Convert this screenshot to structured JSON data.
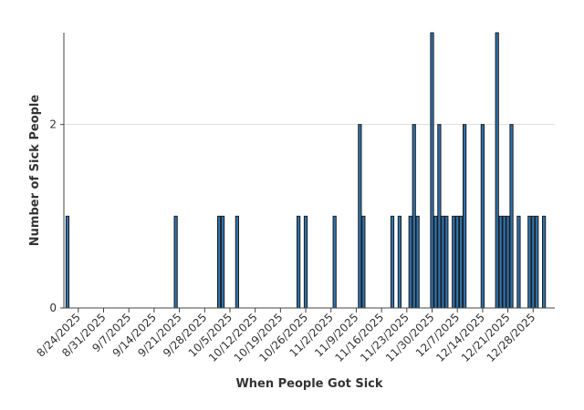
{
  "chart_data": {
    "type": "bar",
    "title": "",
    "xlabel": "When People Got Sick",
    "ylabel": "Number of Sick People",
    "x_range": [
      "2025-08-20",
      "2026-01-03"
    ],
    "ylim": [
      0,
      3
    ],
    "y_ticks": [
      0,
      2
    ],
    "grid": "horizontal",
    "bar_color": "#2f72ad",
    "x_ticks": [
      {
        "date": "2025-08-24",
        "label": "8/24/2025"
      },
      {
        "date": "2025-08-31",
        "label": "8/31/2025"
      },
      {
        "date": "2025-09-07",
        "label": "9/7/2025"
      },
      {
        "date": "2025-09-14",
        "label": "9/14/2025"
      },
      {
        "date": "2025-09-21",
        "label": "9/21/2025"
      },
      {
        "date": "2025-09-28",
        "label": "9/28/2025"
      },
      {
        "date": "2025-10-05",
        "label": "10/5/2025"
      },
      {
        "date": "2025-10-12",
        "label": "10/12/2025"
      },
      {
        "date": "2025-10-19",
        "label": "10/19/2025"
      },
      {
        "date": "2025-10-26",
        "label": "10/26/2025"
      },
      {
        "date": "2025-11-02",
        "label": "11/2/2025"
      },
      {
        "date": "2025-11-09",
        "label": "11/9/2025"
      },
      {
        "date": "2025-11-16",
        "label": "11/16/2025"
      },
      {
        "date": "2025-11-23",
        "label": "11/23/2025"
      },
      {
        "date": "2025-11-30",
        "label": "11/30/2025"
      },
      {
        "date": "2025-12-07",
        "label": "12/7/2025"
      },
      {
        "date": "2025-12-14",
        "label": "12/14/2025"
      },
      {
        "date": "2025-12-21",
        "label": "12/21/2025"
      },
      {
        "date": "2025-12-28",
        "label": "12/28/2025"
      }
    ],
    "x": [
      "2025-08-21",
      "2025-09-20",
      "2025-10-02",
      "2025-10-03",
      "2025-10-07",
      "2025-10-24",
      "2025-10-26",
      "2025-11-03",
      "2025-11-10",
      "2025-11-11",
      "2025-11-19",
      "2025-11-21",
      "2025-11-24",
      "2025-11-25",
      "2025-11-26",
      "2025-11-30",
      "2025-12-01",
      "2025-12-02",
      "2025-12-03",
      "2025-12-04",
      "2025-12-06",
      "2025-12-07",
      "2025-12-08",
      "2025-12-09",
      "2025-12-14",
      "2025-12-18",
      "2025-12-19",
      "2025-12-20",
      "2025-12-21",
      "2025-12-22",
      "2025-12-24",
      "2025-12-27",
      "2025-12-28",
      "2025-12-29",
      "2025-12-31"
    ],
    "values": [
      1,
      1,
      1,
      1,
      1,
      1,
      1,
      1,
      2,
      1,
      1,
      1,
      1,
      2,
      1,
      3,
      1,
      2,
      1,
      1,
      1,
      1,
      1,
      2,
      2,
      3,
      1,
      1,
      1,
      2,
      1,
      1,
      1,
      1,
      1
    ]
  }
}
